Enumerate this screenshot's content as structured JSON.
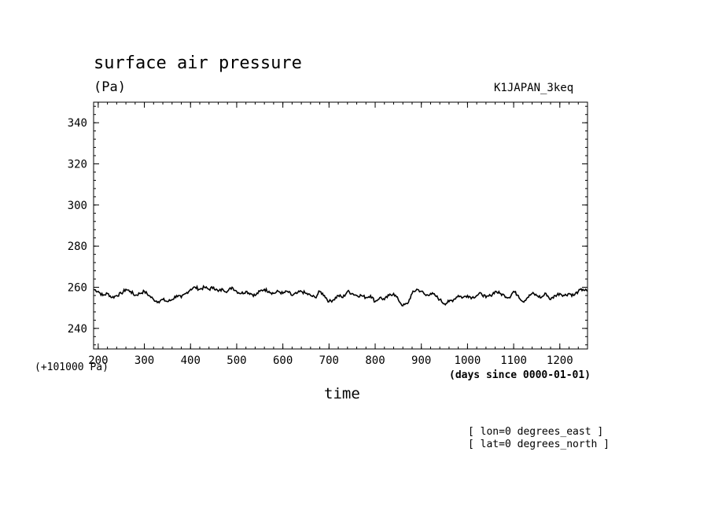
{
  "chart_data": {
    "type": "line",
    "title": "surface air pressure",
    "units": "(Pa)",
    "run_label": "K1JAPAN_3keq",
    "ylabel": "",
    "xlabel": "time",
    "x_units_note": "(days since 0000-01-01)",
    "y_offset_note": "(+101000 Pa)",
    "xlim": [
      190,
      1260
    ],
    "ylim": [
      230,
      350
    ],
    "x_ticks": [
      200,
      300,
      400,
      500,
      600,
      700,
      800,
      900,
      1000,
      1100,
      1200
    ],
    "y_ticks": [
      240,
      260,
      280,
      300,
      320,
      340
    ],
    "x_tick_labels": [
      "200",
      "300",
      "400",
      "500",
      "600",
      "700",
      "800",
      "900",
      "1000",
      "1100",
      "1200"
    ],
    "y_tick_labels": [
      "240",
      "260",
      "280",
      "300",
      "320",
      "340"
    ],
    "grid": false,
    "annotations": [
      "[ lon=0 degrees_east ]",
      "[ lat=0 degrees_north ]"
    ],
    "series": [
      {
        "x": [
          190,
          200,
          210,
          220,
          230,
          240,
          250,
          260,
          270,
          280,
          290,
          300,
          310,
          320,
          330,
          340,
          350,
          360,
          370,
          380,
          390,
          400,
          410,
          420,
          430,
          440,
          450,
          460,
          470,
          480,
          490,
          500,
          510,
          520,
          530,
          540,
          550,
          560,
          570,
          580,
          590,
          600,
          610,
          620,
          630,
          640,
          650,
          660,
          670,
          680,
          690,
          700,
          710,
          720,
          730,
          740,
          750,
          760,
          770,
          780,
          790,
          800,
          810,
          820,
          830,
          840,
          850,
          860,
          870,
          880,
          890,
          900,
          910,
          920,
          930,
          940,
          950,
          960,
          970,
          980,
          990,
          1000,
          1010,
          1020,
          1030,
          1040,
          1050,
          1060,
          1070,
          1080,
          1090,
          1100,
          1110,
          1120,
          1130,
          1140,
          1150,
          1160,
          1170,
          1180,
          1190,
          1200,
          1210,
          1220,
          1230,
          1240,
          1250,
          1260
        ],
        "values": [
          259,
          258,
          256,
          257,
          255,
          256,
          257,
          259,
          258,
          256,
          257,
          258,
          256,
          254,
          253,
          254,
          253,
          254,
          256,
          255,
          257,
          259,
          260,
          259,
          260,
          259,
          260,
          258,
          259,
          258,
          260,
          258,
          257,
          258,
          257,
          256,
          258,
          259,
          258,
          257,
          258,
          257,
          258,
          256,
          257,
          258,
          257,
          256,
          255,
          258,
          256,
          253,
          254,
          256,
          255,
          258,
          257,
          256,
          256,
          255,
          256,
          253,
          255,
          254,
          256,
          257,
          254,
          251,
          252,
          257,
          259,
          258,
          256,
          257,
          256,
          254,
          252,
          253,
          254,
          256,
          255,
          256,
          255,
          256,
          257,
          255,
          256,
          258,
          257,
          256,
          255,
          258,
          256,
          253,
          255,
          257,
          256,
          255,
          257,
          254,
          256,
          257,
          256,
          257,
          256,
          258,
          259,
          258
        ]
      }
    ]
  }
}
